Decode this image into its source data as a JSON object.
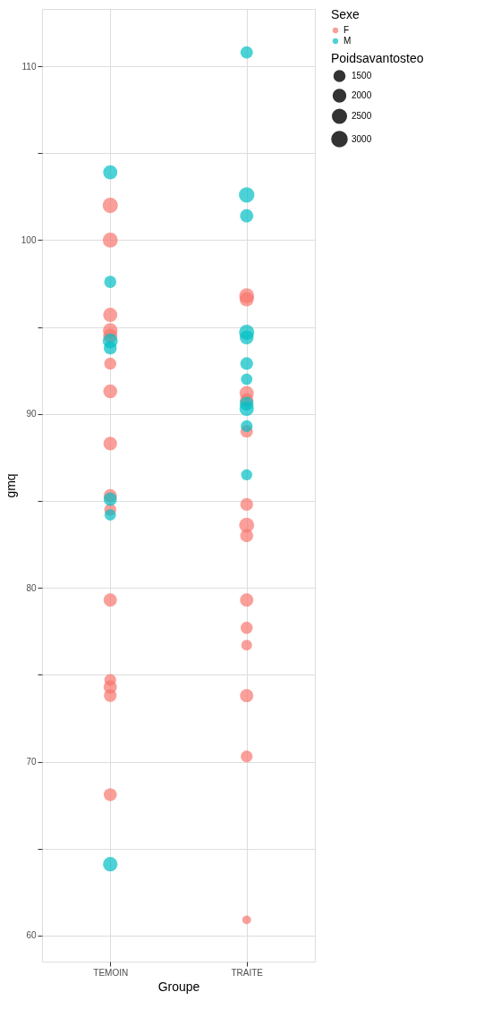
{
  "chart_data": {
    "type": "bubble",
    "xlabel": "Groupe",
    "ylabel": "gmq",
    "legend_title": [
      "Sexe",
      "Poidsavantosteo"
    ],
    "categories": [
      "TEMOIN",
      "TRAITE"
    ],
    "ylim": [
      58.5,
      113.3
    ],
    "yticks": [
      60,
      {
        "value": 65,
        "label": null
      },
      70,
      {
        "value": 75,
        "label": null
      },
      80,
      {
        "value": 85,
        "label": null
      },
      90,
      {
        "value": 95,
        "label": null
      },
      100,
      {
        "value": 105,
        "label": null
      },
      110
    ],
    "grid": true,
    "legend": "right",
    "size_legend": [
      1500,
      2000,
      2500,
      3000
    ],
    "series": [
      {
        "name": "F",
        "color": "#f8766d",
        "x": [
          "TEMOIN",
          "TEMOIN",
          "TEMOIN",
          "TEMOIN",
          "TEMOIN",
          "TEMOIN",
          "TEMOIN",
          "TEMOIN",
          "TEMOIN",
          "TEMOIN",
          "TEMOIN",
          "TEMOIN",
          "TEMOIN",
          "TEMOIN",
          "TEMOIN",
          "TRAITE",
          "TRAITE",
          "TRAITE",
          "TRAITE",
          "TRAITE",
          "TRAITE",
          "TRAITE",
          "TRAITE",
          "TRAITE",
          "TRAITE",
          "TRAITE",
          "TRAITE",
          "TRAITE",
          "TRAITE"
        ],
        "values": [
          102,
          100,
          95.7,
          94.8,
          94.5,
          92.9,
          91.3,
          88.3,
          85.3,
          84.5,
          79.3,
          74.7,
          74.3,
          73.8,
          68.1,
          96.8,
          96.6,
          91.2,
          90.8,
          89.0,
          84.8,
          83.6,
          83.0,
          79.3,
          77.7,
          76.7,
          73.8,
          70.3,
          60.9
        ],
        "sizes": [
          3000,
          2900,
          2600,
          2800,
          2600,
          1900,
          2500,
          2400,
          2300,
          1900,
          2300,
          1800,
          2300,
          2100,
          2200,
          2900,
          2600,
          2600,
          2400,
          2000,
          2100,
          2900,
          2200,
          2300,
          1900,
          1500,
          2300,
          1800,
          1000
        ]
      },
      {
        "name": "M",
        "color": "#00bfc4",
        "x": [
          "TEMOIN",
          "TEMOIN",
          "TEMOIN",
          "TEMOIN",
          "TEMOIN",
          "TEMOIN",
          "TEMOIN",
          "TRAITE",
          "TRAITE",
          "TRAITE",
          "TRAITE",
          "TRAITE",
          "TRAITE",
          "TRAITE",
          "TRAITE",
          "TRAITE",
          "TRAITE",
          "TRAITE"
        ],
        "values": [
          103.9,
          97.6,
          94.2,
          93.8,
          85.1,
          84.2,
          64.1,
          110.8,
          102.6,
          101.4,
          94.7,
          94.4,
          92.9,
          92.0,
          90.6,
          90.3,
          89.3,
          86.5
        ],
        "sizes": [
          2600,
          1900,
          2900,
          2200,
          2300,
          1700,
          2700,
          2000,
          3100,
          2300,
          3000,
          2500,
          2100,
          1700,
          2500,
          2700,
          1800,
          1600
        ]
      }
    ]
  }
}
